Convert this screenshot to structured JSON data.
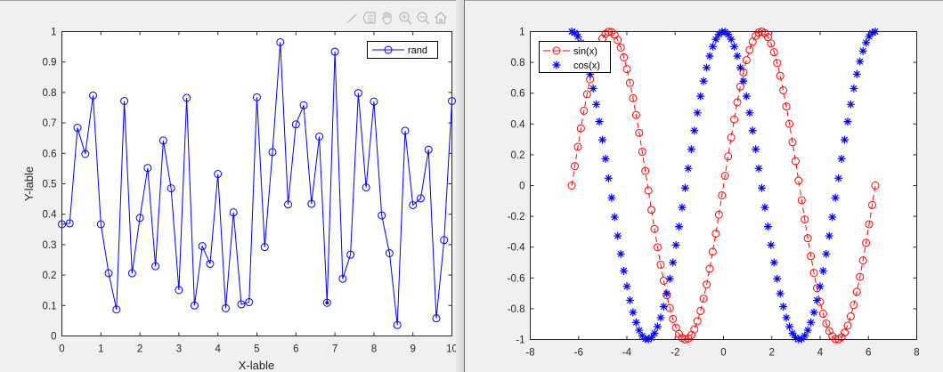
{
  "toolbar": {
    "icons": [
      "brush-icon",
      "legend-icon",
      "pan-hand-icon",
      "zoom-in-icon",
      "zoom-out-icon",
      "home-icon"
    ]
  },
  "colors": {
    "rand_line": "#0000ff",
    "sin_line": "#ff0000",
    "cos_marker": "#0000ff",
    "axes": "#262626",
    "figure_bg": "#f0f0f0",
    "axes_bg": "#ffffff"
  },
  "chart_data": [
    {
      "type": "line",
      "title": "",
      "xlabel": "X-lable",
      "ylabel": "Y-lable",
      "xlim": [
        0,
        10
      ],
      "ylim": [
        0,
        1
      ],
      "xticks": [
        "0",
        "1",
        "2",
        "3",
        "4",
        "5",
        "6",
        "7",
        "8",
        "9",
        "10"
      ],
      "yticks": [
        "0",
        "0.1",
        "0.2",
        "0.3",
        "0.4",
        "0.5",
        "0.6",
        "0.7",
        "0.8",
        "0.9",
        "1"
      ],
      "grid": false,
      "legend_position": "northeast",
      "series": [
        {
          "name": "rand",
          "style": "solid line with circle markers",
          "color": "#0000ff",
          "x": [
            0,
            0.2,
            0.4,
            0.6,
            0.8,
            1.0,
            1.2,
            1.4,
            1.6,
            1.8,
            2.0,
            2.2,
            2.4,
            2.6,
            2.8,
            3.0,
            3.2,
            3.4,
            3.6,
            3.8,
            4.0,
            4.2,
            4.4,
            4.6,
            4.8,
            5.0,
            5.2,
            5.4,
            5.6,
            5.8,
            6.0,
            6.2,
            6.4,
            6.6,
            6.8,
            7.0,
            7.2,
            7.4,
            7.6,
            7.8,
            8.0,
            8.2,
            8.4,
            8.6,
            8.8,
            9.0,
            9.2,
            9.4,
            9.6,
            9.8,
            10.0
          ],
          "values": [
            0.367,
            0.37,
            0.684,
            0.598,
            0.79,
            0.367,
            0.206,
            0.087,
            0.772,
            0.206,
            0.388,
            0.552,
            0.229,
            0.642,
            0.485,
            0.151,
            0.782,
            0.1,
            0.295,
            0.237,
            0.532,
            0.091,
            0.406,
            0.104,
            0.111,
            0.784,
            0.292,
            0.604,
            0.965,
            0.432,
            0.695,
            0.758,
            0.434,
            0.655,
            0.109,
            0.934,
            0.188,
            0.267,
            0.798,
            0.488,
            0.77,
            0.396,
            0.272,
            0.036,
            0.674,
            0.43,
            0.452,
            0.612,
            0.058,
            0.315,
            0.772
          ]
        }
      ],
      "annotations": [
        "selected data point at x=6.8 (filled dark marker)"
      ]
    },
    {
      "type": "line",
      "title": "",
      "xlabel": "",
      "ylabel": "",
      "xlim": [
        -8,
        8
      ],
      "ylim": [
        -1,
        1
      ],
      "xticks": [
        "-8",
        "-6",
        "-4",
        "-2",
        "0",
        "2",
        "4",
        "6",
        "8"
      ],
      "yticks": [
        "-1",
        "-0.8",
        "-0.6",
        "-0.4",
        "-0.2",
        "0",
        "0.2",
        "0.4",
        "0.6",
        "0.8",
        "1"
      ],
      "grid": false,
      "legend_position": "northwest",
      "x_range": [
        -6.2832,
        6.2832
      ],
      "n_points": 100,
      "series": [
        {
          "name": "sin(x)",
          "style": "dashed line with circle markers",
          "color": "#ff0000",
          "function": "sin"
        },
        {
          "name": "cos(x)",
          "style": "asterisk markers only",
          "color": "#0000ff",
          "function": "cos"
        }
      ]
    }
  ]
}
